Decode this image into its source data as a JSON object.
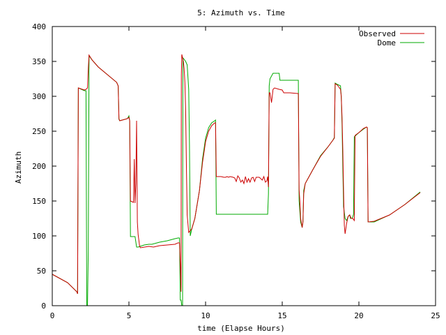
{
  "chart_data": {
    "type": "line",
    "title": "5: Azimuth vs. Time",
    "xlabel": "time (Elapse Hours)",
    "ylabel": "Azimuth",
    "xlim": [
      0,
      25
    ],
    "ylim": [
      0,
      400
    ],
    "xticks": [
      0,
      5,
      10,
      15,
      20,
      25
    ],
    "yticks": [
      0,
      50,
      100,
      150,
      200,
      250,
      300,
      350,
      400
    ],
    "grid": false,
    "legend_position": "top-right",
    "series": [
      {
        "name": "Observed",
        "color": "#cc0000",
        "points": [
          [
            0,
            45
          ],
          [
            1.0,
            33
          ],
          [
            1.6,
            20
          ],
          [
            1.65,
            17
          ],
          [
            1.7,
            312
          ],
          [
            2.1,
            309
          ],
          [
            2.2,
            310
          ],
          [
            2.3,
            312
          ],
          [
            2.35,
            340
          ],
          [
            2.4,
            359
          ],
          [
            2.6,
            352
          ],
          [
            3.0,
            342
          ],
          [
            4.2,
            320
          ],
          [
            4.3,
            315
          ],
          [
            4.35,
            268
          ],
          [
            4.4,
            265
          ],
          [
            4.9,
            268
          ],
          [
            5.0,
            270
          ],
          [
            5.05,
            265
          ],
          [
            5.1,
            150
          ],
          [
            5.2,
            149
          ],
          [
            5.3,
            148
          ],
          [
            5.35,
            210
          ],
          [
            5.4,
            147
          ],
          [
            5.45,
            175
          ],
          [
            5.5,
            265
          ],
          [
            5.55,
            120
          ],
          [
            5.6,
            102
          ],
          [
            5.7,
            85
          ],
          [
            5.75,
            83
          ],
          [
            6.3,
            85
          ],
          [
            6.6,
            84
          ],
          [
            7.0,
            86
          ],
          [
            7.5,
            87
          ],
          [
            8.0,
            88
          ],
          [
            8.2,
            90
          ],
          [
            8.3,
            90
          ],
          [
            8.35,
            60
          ],
          [
            8.4,
            20
          ],
          [
            8.42,
            330
          ],
          [
            8.45,
            360
          ],
          [
            8.5,
            355
          ],
          [
            8.55,
            350
          ],
          [
            8.6,
            340
          ],
          [
            8.65,
            320
          ],
          [
            8.7,
            280
          ],
          [
            8.75,
            200
          ],
          [
            8.8,
            130
          ],
          [
            8.9,
            105
          ],
          [
            9.1,
            110
          ],
          [
            9.3,
            125
          ],
          [
            9.6,
            165
          ],
          [
            9.8,
            205
          ],
          [
            10.0,
            235
          ],
          [
            10.2,
            250
          ],
          [
            10.4,
            258
          ],
          [
            10.6,
            262
          ],
          [
            10.65,
            262
          ],
          [
            10.7,
            185
          ],
          [
            11.0,
            185
          ],
          [
            11.2,
            184
          ],
          [
            11.3,
            184
          ],
          [
            11.4,
            185
          ],
          [
            11.5,
            184
          ],
          [
            11.6,
            185
          ],
          [
            11.8,
            184
          ],
          [
            11.9,
            183
          ],
          [
            12.0,
            178
          ],
          [
            12.1,
            186
          ],
          [
            12.2,
            183
          ],
          [
            12.3,
            177
          ],
          [
            12.4,
            180
          ],
          [
            12.5,
            175
          ],
          [
            12.6,
            185
          ],
          [
            12.7,
            177
          ],
          [
            12.8,
            182
          ],
          [
            12.9,
            177
          ],
          [
            13.0,
            183
          ],
          [
            13.1,
            184
          ],
          [
            13.2,
            178
          ],
          [
            13.3,
            184
          ],
          [
            13.5,
            184
          ],
          [
            13.7,
            180
          ],
          [
            13.8,
            185
          ],
          [
            13.9,
            177
          ],
          [
            14.0,
            179
          ],
          [
            14.05,
            185
          ],
          [
            14.1,
            170
          ],
          [
            14.15,
            305
          ],
          [
            14.2,
            305
          ],
          [
            14.3,
            291
          ],
          [
            14.35,
            300
          ],
          [
            14.4,
            310
          ],
          [
            14.5,
            312
          ],
          [
            14.8,
            310
          ],
          [
            15.0,
            309
          ],
          [
            15.1,
            305
          ],
          [
            15.5,
            305
          ],
          [
            16.0,
            304
          ],
          [
            16.05,
            304
          ],
          [
            16.1,
            166
          ],
          [
            16.15,
            150
          ],
          [
            16.2,
            125
          ],
          [
            16.3,
            112
          ],
          [
            16.35,
            120
          ],
          [
            16.4,
            160
          ],
          [
            16.5,
            175
          ],
          [
            17.0,
            195
          ],
          [
            17.5,
            214
          ],
          [
            18.0,
            228
          ],
          [
            18.3,
            237
          ],
          [
            18.4,
            240
          ],
          [
            18.45,
            318
          ],
          [
            18.6,
            316
          ],
          [
            18.7,
            313
          ],
          [
            18.8,
            310
          ],
          [
            18.85,
            300
          ],
          [
            18.9,
            270
          ],
          [
            18.95,
            225
          ],
          [
            19.0,
            165
          ],
          [
            19.05,
            115
          ],
          [
            19.1,
            103
          ],
          [
            19.2,
            118
          ],
          [
            19.3,
            128
          ],
          [
            19.4,
            130
          ],
          [
            19.5,
            125
          ],
          [
            19.6,
            125
          ],
          [
            19.7,
            122
          ],
          [
            19.75,
            244
          ],
          [
            20.0,
            248
          ],
          [
            20.3,
            254
          ],
          [
            20.5,
            256
          ],
          [
            20.55,
            255
          ],
          [
            20.6,
            120
          ],
          [
            21.0,
            121
          ],
          [
            22.0,
            130
          ],
          [
            23.0,
            145
          ],
          [
            24.0,
            162
          ]
        ]
      },
      {
        "name": "Dome",
        "color": "#00aa00",
        "points": [
          [
            0,
            45
          ],
          [
            1.0,
            33
          ],
          [
            1.6,
            20
          ],
          [
            1.65,
            17
          ],
          [
            1.7,
            312
          ],
          [
            2.1,
            308
          ],
          [
            2.2,
            308
          ],
          [
            2.25,
            0
          ],
          [
            2.3,
            0
          ],
          [
            2.35,
            80
          ],
          [
            2.4,
            358
          ],
          [
            2.6,
            352
          ],
          [
            3.0,
            342
          ],
          [
            4.2,
            320
          ],
          [
            4.3,
            315
          ],
          [
            4.35,
            267
          ],
          [
            4.4,
            265
          ],
          [
            4.9,
            268
          ],
          [
            5.0,
            272
          ],
          [
            5.05,
            265
          ],
          [
            5.1,
            99
          ],
          [
            5.4,
            99
          ],
          [
            5.5,
            84
          ],
          [
            5.6,
            84
          ],
          [
            6.0,
            87
          ],
          [
            6.3,
            88
          ],
          [
            6.5,
            88
          ],
          [
            7.0,
            91
          ],
          [
            7.5,
            93
          ],
          [
            8.0,
            96
          ],
          [
            8.2,
            97
          ],
          [
            8.3,
            97
          ],
          [
            8.35,
            8
          ],
          [
            8.4,
            8
          ],
          [
            8.45,
            0
          ],
          [
            8.5,
            0
          ],
          [
            8.52,
            355
          ],
          [
            8.6,
            353
          ],
          [
            8.7,
            350
          ],
          [
            8.8,
            345
          ],
          [
            8.9,
            310
          ],
          [
            8.95,
            230
          ],
          [
            9.0,
            100
          ],
          [
            9.1,
            110
          ],
          [
            9.3,
            125
          ],
          [
            9.6,
            165
          ],
          [
            9.8,
            210
          ],
          [
            10.0,
            240
          ],
          [
            10.2,
            255
          ],
          [
            10.4,
            262
          ],
          [
            10.6,
            265
          ],
          [
            10.65,
            266
          ],
          [
            10.7,
            131
          ],
          [
            11.0,
            131
          ],
          [
            12.0,
            131
          ],
          [
            13.0,
            131
          ],
          [
            14.0,
            131
          ],
          [
            14.05,
            131
          ],
          [
            14.1,
            160
          ],
          [
            14.15,
            315
          ],
          [
            14.2,
            325
          ],
          [
            14.4,
            333
          ],
          [
            14.6,
            333
          ],
          [
            14.8,
            333
          ],
          [
            14.85,
            323
          ],
          [
            15.0,
            323
          ],
          [
            15.5,
            323
          ],
          [
            16.0,
            323
          ],
          [
            16.05,
            323
          ],
          [
            16.1,
            150
          ],
          [
            16.2,
            120
          ],
          [
            16.3,
            112
          ],
          [
            16.35,
            120
          ],
          [
            16.4,
            165
          ],
          [
            16.5,
            175
          ],
          [
            17.0,
            195
          ],
          [
            17.5,
            215
          ],
          [
            18.0,
            228
          ],
          [
            18.3,
            237
          ],
          [
            18.4,
            241
          ],
          [
            18.45,
            319
          ],
          [
            18.6,
            317
          ],
          [
            18.8,
            315
          ],
          [
            18.85,
            300
          ],
          [
            18.9,
            260
          ],
          [
            18.95,
            200
          ],
          [
            19.0,
            142
          ],
          [
            19.1,
            125
          ],
          [
            19.2,
            122
          ],
          [
            19.3,
            128
          ],
          [
            19.4,
            130
          ],
          [
            19.45,
            125
          ],
          [
            19.55,
            125
          ],
          [
            19.6,
            127
          ],
          [
            19.65,
            131
          ],
          [
            19.7,
            242
          ],
          [
            20.0,
            248
          ],
          [
            20.3,
            253
          ],
          [
            20.5,
            256
          ],
          [
            20.55,
            255
          ],
          [
            20.6,
            120
          ],
          [
            21.0,
            120
          ],
          [
            22.0,
            130
          ],
          [
            23.0,
            145
          ],
          [
            24.0,
            163
          ]
        ]
      }
    ]
  }
}
